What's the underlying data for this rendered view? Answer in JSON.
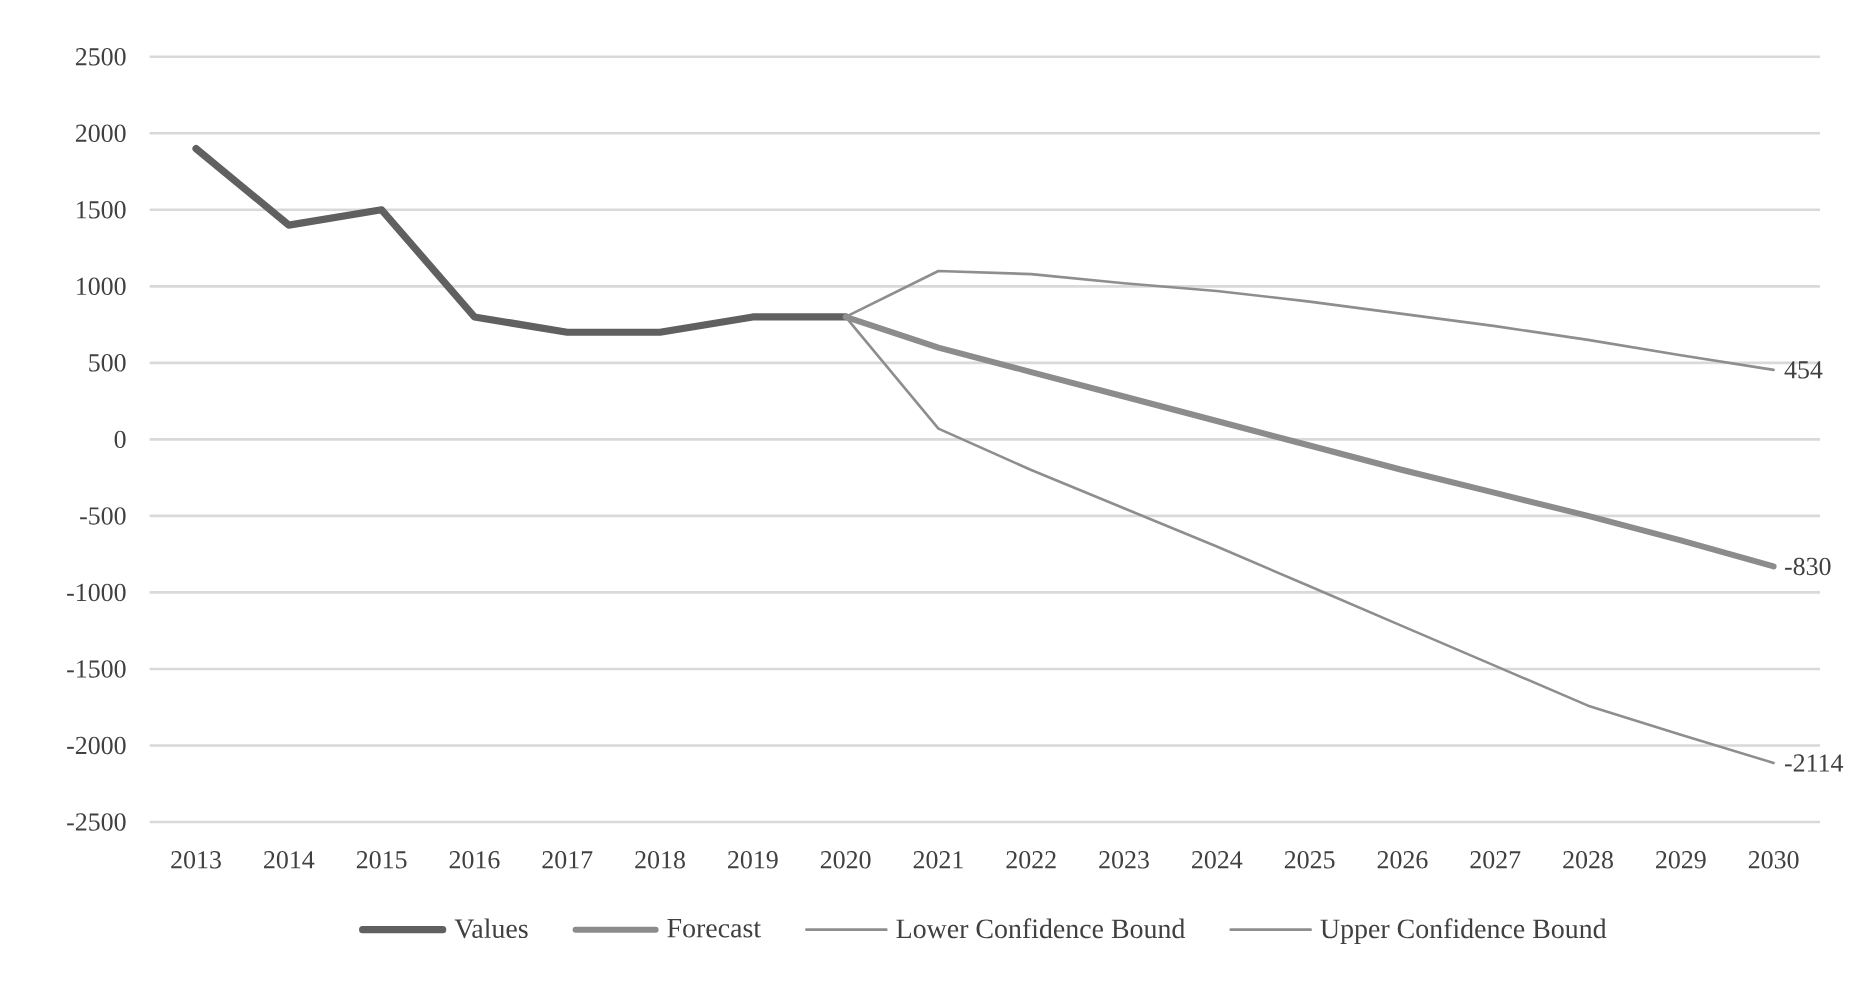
{
  "chart_data": {
    "type": "line",
    "categories": [
      "2013",
      "2014",
      "2015",
      "2016",
      "2017",
      "2018",
      "2019",
      "2020",
      "2021",
      "2022",
      "2023",
      "2024",
      "2025",
      "2026",
      "2027",
      "2028",
      "2029",
      "2030"
    ],
    "series": [
      {
        "name": "Values",
        "color": "#606060",
        "values": [
          1900,
          1400,
          1500,
          800,
          700,
          700,
          800,
          800,
          null,
          null,
          null,
          null,
          null,
          null,
          null,
          null,
          null,
          null
        ]
      },
      {
        "name": "Forecast",
        "color": "#8c8c8c",
        "values": [
          null,
          null,
          null,
          null,
          null,
          null,
          null,
          800,
          600,
          440,
          280,
          120,
          -40,
          -200,
          -350,
          -500,
          -660,
          -830
        ],
        "value_labels": [
          null,
          null,
          null,
          null,
          null,
          null,
          null,
          null,
          null,
          null,
          null,
          null,
          null,
          null,
          null,
          null,
          null,
          "-830"
        ]
      },
      {
        "name": "Lower Confidence Bound",
        "color": "#8e8e8e",
        "values": [
          null,
          null,
          null,
          null,
          null,
          null,
          null,
          800,
          70,
          -200,
          -450,
          -700,
          -960,
          -1220,
          -1480,
          -1740,
          -1930,
          -2114
        ],
        "value_labels": [
          null,
          null,
          null,
          null,
          null,
          null,
          null,
          null,
          null,
          null,
          null,
          null,
          null,
          null,
          null,
          null,
          null,
          "-2114"
        ]
      },
      {
        "name": "Upper Confidence Bound",
        "color": "#8e8e8e",
        "values": [
          null,
          null,
          null,
          null,
          null,
          null,
          null,
          800,
          1100,
          1080,
          1020,
          970,
          900,
          820,
          740,
          650,
          550,
          454
        ],
        "value_labels": [
          null,
          null,
          null,
          null,
          null,
          null,
          null,
          null,
          null,
          null,
          null,
          null,
          null,
          null,
          null,
          null,
          null,
          "454"
        ]
      }
    ],
    "ylim": [
      -2500,
      2500
    ],
    "yticks": [
      -2500,
      -2000,
      -1500,
      -1000,
      -500,
      0,
      500,
      1000,
      1500,
      2000,
      2500
    ],
    "grid": "y",
    "legend": "bottom"
  }
}
